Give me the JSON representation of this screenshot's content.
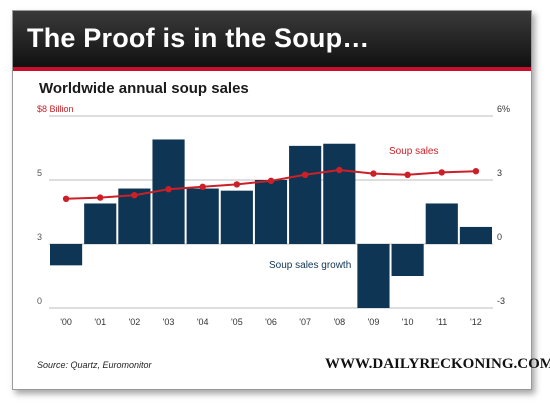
{
  "header": {
    "title": "The Proof is in the Soup…",
    "subtitle": "Worldwide annual soup sales"
  },
  "footer": {
    "source": "Source:  Quartz, Euromonitor",
    "brand": "WWW.DAILYRECKONING.COM"
  },
  "colors": {
    "bars": "#0e3553",
    "line": "#cc2028",
    "accent": "#c8102e"
  },
  "chart_data": {
    "type": "bar",
    "categories": [
      "'00",
      "'01",
      "'02",
      "'03",
      "'04",
      "'05",
      "'06",
      "'07",
      "'08",
      "'09",
      "'10",
      "'11",
      "'12"
    ],
    "series": [
      {
        "name": "Soup sales growth",
        "type": "bar",
        "axis": "right",
        "values": [
          -1.0,
          1.9,
          2.6,
          4.9,
          2.6,
          2.5,
          3.0,
          4.6,
          4.7,
          -3.0,
          -1.5,
          1.9,
          0.8
        ]
      },
      {
        "name": "Soup sales",
        "type": "line",
        "axis": "left",
        "values": [
          4.55,
          4.6,
          4.7,
          4.95,
          5.05,
          5.15,
          5.3,
          5.55,
          5.75,
          5.6,
          5.55,
          5.65,
          5.7
        ]
      }
    ],
    "left_axis": {
      "ticks": [
        "$8 Billion",
        "5",
        "3",
        "0"
      ],
      "range": [
        0,
        8
      ]
    },
    "right_axis": {
      "ticks": [
        "6%",
        "3",
        "0",
        "-3"
      ],
      "range": [
        -3,
        6
      ]
    },
    "grid": true
  }
}
